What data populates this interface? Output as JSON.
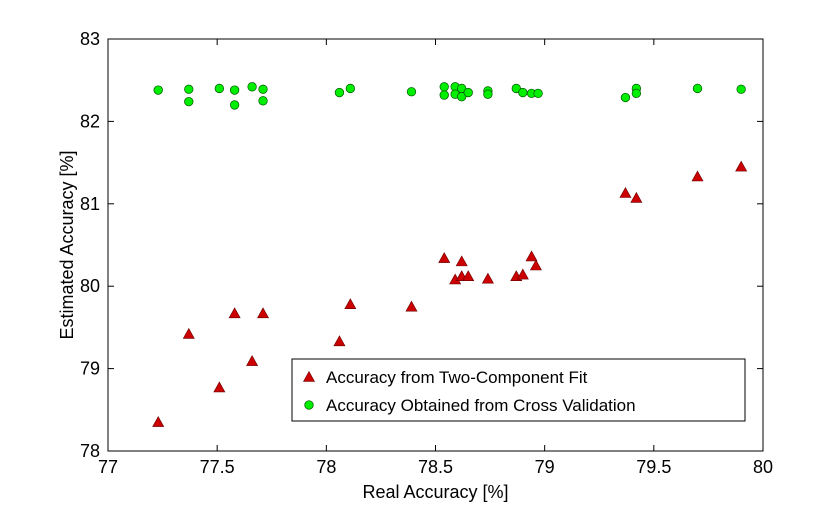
{
  "chart_data": {
    "type": "scatter",
    "xlabel": "Real Accuracy [%]",
    "ylabel": "Estimated Accuracy [%]",
    "xlim": [
      77,
      80
    ],
    "ylim": [
      78,
      83
    ],
    "x_ticks": [
      "77",
      "77.5",
      "78",
      "78.5",
      "79",
      "79.5",
      "80"
    ],
    "y_ticks": [
      "78",
      "79",
      "80",
      "81",
      "82",
      "83"
    ],
    "grid": false,
    "legend_position": "bottom-right",
    "series": [
      {
        "name": "Accuracy from Two-Component Fit",
        "marker": "triangle",
        "color": "#cc0000",
        "points": [
          [
            77.23,
            78.35
          ],
          [
            77.37,
            79.42
          ],
          [
            77.51,
            78.77
          ],
          [
            77.58,
            79.67
          ],
          [
            77.66,
            79.09
          ],
          [
            77.71,
            79.67
          ],
          [
            78.06,
            79.33
          ],
          [
            78.11,
            79.78
          ],
          [
            78.39,
            79.75
          ],
          [
            78.54,
            80.34
          ],
          [
            78.59,
            80.08
          ],
          [
            78.62,
            80.12
          ],
          [
            78.62,
            80.3
          ],
          [
            78.65,
            80.12
          ],
          [
            78.74,
            80.09
          ],
          [
            78.87,
            80.12
          ],
          [
            78.9,
            80.14
          ],
          [
            78.94,
            80.36
          ],
          [
            78.96,
            80.25
          ],
          [
            79.37,
            81.13
          ],
          [
            79.42,
            81.07
          ],
          [
            79.7,
            81.33
          ],
          [
            79.9,
            81.45
          ]
        ]
      },
      {
        "name": "Accuracy Obtained from Cross Validation",
        "marker": "circle",
        "color": "#00ee00",
        "points": [
          [
            77.23,
            82.38
          ],
          [
            77.37,
            82.39
          ],
          [
            77.37,
            82.24
          ],
          [
            77.51,
            82.4
          ],
          [
            77.58,
            82.38
          ],
          [
            77.58,
            82.2
          ],
          [
            77.66,
            82.42
          ],
          [
            77.71,
            82.39
          ],
          [
            77.71,
            82.25
          ],
          [
            78.06,
            82.35
          ],
          [
            78.11,
            82.4
          ],
          [
            78.39,
            82.36
          ],
          [
            78.54,
            82.42
          ],
          [
            78.54,
            82.32
          ],
          [
            78.59,
            82.42
          ],
          [
            78.59,
            82.33
          ],
          [
            78.62,
            82.4
          ],
          [
            78.62,
            82.3
          ],
          [
            78.65,
            82.35
          ],
          [
            78.74,
            82.37
          ],
          [
            78.74,
            82.33
          ],
          [
            78.87,
            82.4
          ],
          [
            78.9,
            82.35
          ],
          [
            78.94,
            82.34
          ],
          [
            78.97,
            82.34
          ],
          [
            79.37,
            82.29
          ],
          [
            79.42,
            82.4
          ],
          [
            79.42,
            82.34
          ],
          [
            79.7,
            82.4
          ],
          [
            79.9,
            82.39
          ]
        ]
      }
    ]
  }
}
